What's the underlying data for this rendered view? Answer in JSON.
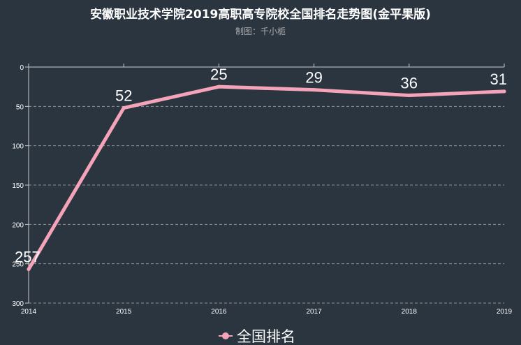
{
  "title": "安徽职业技术学院2019高职高专院校全国排名走势图(金平果版)",
  "subtitle": "制图：千小栀",
  "colors": {
    "background": "#2b3540",
    "series": "#f4a3b9",
    "text": "#ffffff",
    "subtext": "#aaaaaa"
  },
  "chart_data": {
    "type": "line",
    "title": "安徽职业技术学院2019高职高专院校全国排名走势图(金平果版)",
    "subtitle": "制图：千小栀",
    "categories": [
      "2014",
      "2015",
      "2016",
      "2017",
      "2018",
      "2019"
    ],
    "series": [
      {
        "name": "全国排名",
        "values": [
          257,
          52,
          25,
          29,
          36,
          31
        ]
      }
    ],
    "y_ticks": [
      "0",
      "50",
      "100",
      "150",
      "200",
      "250",
      "300"
    ],
    "ylim": [
      0,
      300
    ],
    "y_inverse": true,
    "grid": true,
    "legend": "bottom-center"
  }
}
